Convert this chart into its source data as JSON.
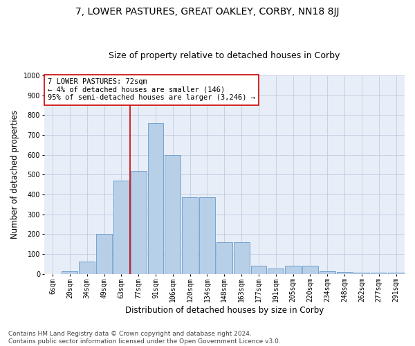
{
  "title": "7, LOWER PASTURES, GREAT OAKLEY, CORBY, NN18 8JJ",
  "subtitle": "Size of property relative to detached houses in Corby",
  "xlabel": "Distribution of detached houses by size in Corby",
  "ylabel": "Number of detached properties",
  "categories": [
    "6sqm",
    "20sqm",
    "34sqm",
    "49sqm",
    "63sqm",
    "77sqm",
    "91sqm",
    "106sqm",
    "120sqm",
    "134sqm",
    "148sqm",
    "163sqm",
    "177sqm",
    "191sqm",
    "205sqm",
    "220sqm",
    "234sqm",
    "248sqm",
    "262sqm",
    "277sqm",
    "291sqm"
  ],
  "values": [
    0,
    12,
    60,
    200,
    470,
    520,
    760,
    600,
    385,
    385,
    160,
    160,
    40,
    28,
    42,
    42,
    12,
    8,
    5,
    5,
    5
  ],
  "bar_color": "#b8cfe8",
  "bar_edge_color": "#6699cc",
  "vline_x": 4.5,
  "vline_color": "#cc0000",
  "annotation_text": "7 LOWER PASTURES: 72sqm\n← 4% of detached houses are smaller (146)\n95% of semi-detached houses are larger (3,246) →",
  "annotation_box_color": "#ffffff",
  "annotation_box_edge": "#cc0000",
  "ylim": [
    0,
    1000
  ],
  "yticks": [
    0,
    100,
    200,
    300,
    400,
    500,
    600,
    700,
    800,
    900,
    1000
  ],
  "background_color": "#ffffff",
  "plot_bg_color": "#e8eef8",
  "grid_color": "#c0cce0",
  "footnote": "Contains HM Land Registry data © Crown copyright and database right 2024.\nContains public sector information licensed under the Open Government Licence v3.0.",
  "title_fontsize": 10,
  "subtitle_fontsize": 9,
  "xlabel_fontsize": 8.5,
  "ylabel_fontsize": 8.5,
  "tick_fontsize": 7,
  "annotation_fontsize": 7.5,
  "footnote_fontsize": 6.5
}
